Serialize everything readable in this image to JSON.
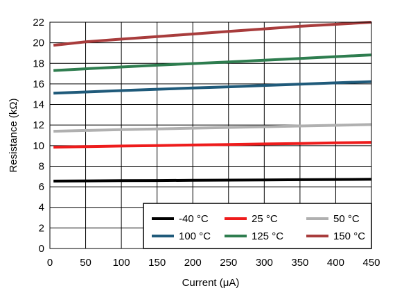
{
  "chart_data": {
    "type": "line",
    "xlabel": "Current (μA)",
    "ylabel": "Resistance (kΩ)",
    "xlim": [
      0,
      450
    ],
    "ylim": [
      0,
      22
    ],
    "xticks": [
      0,
      50,
      100,
      150,
      200,
      250,
      300,
      350,
      400,
      450
    ],
    "yticks": [
      0,
      2,
      4,
      6,
      8,
      10,
      12,
      14,
      16,
      18,
      20,
      22
    ],
    "xtick_labels": [
      "0",
      "50",
      "100",
      "150",
      "200",
      "250",
      "300",
      "350",
      "400",
      "450"
    ],
    "ytick_labels": [
      "0",
      "2",
      "4",
      "6",
      "8",
      "10",
      "12",
      "14",
      "16",
      "18",
      "20",
      "22"
    ],
    "grid": true,
    "legend_position": "bottom-right",
    "series": [
      {
        "name": "-40 °C",
        "color": "#000000",
        "x": [
          5,
          50,
          100,
          150,
          200,
          250,
          300,
          350,
          400,
          450
        ],
        "y": [
          6.55,
          6.57,
          6.59,
          6.61,
          6.63,
          6.65,
          6.67,
          6.69,
          6.71,
          6.73
        ]
      },
      {
        "name": "25 °C",
        "color": "#ee1c1c",
        "x": [
          5,
          50,
          100,
          150,
          200,
          250,
          300,
          350,
          400,
          450
        ],
        "y": [
          9.85,
          9.9,
          9.96,
          10.01,
          10.06,
          10.11,
          10.16,
          10.21,
          10.27,
          10.32
        ]
      },
      {
        "name": "50 °C",
        "color": "#b0b0b0",
        "x": [
          5,
          50,
          100,
          150,
          200,
          250,
          300,
          350,
          400,
          450
        ],
        "y": [
          11.4,
          11.48,
          11.56,
          11.63,
          11.7,
          11.77,
          11.84,
          11.91,
          11.98,
          12.05
        ]
      },
      {
        "name": "100 °C",
        "color": "#1f5a7a",
        "x": [
          5,
          50,
          100,
          150,
          200,
          250,
          300,
          350,
          400,
          450
        ],
        "y": [
          15.1,
          15.22,
          15.35,
          15.48,
          15.6,
          15.72,
          15.85,
          15.98,
          16.1,
          16.22
        ]
      },
      {
        "name": "125 °C",
        "color": "#2e7d4f",
        "x": [
          5,
          50,
          100,
          150,
          200,
          250,
          300,
          350,
          400,
          450
        ],
        "y": [
          17.3,
          17.47,
          17.65,
          17.82,
          17.98,
          18.14,
          18.3,
          18.47,
          18.65,
          18.82
        ]
      },
      {
        "name": "150 °C",
        "color": "#a83c3c",
        "x": [
          5,
          50,
          100,
          150,
          200,
          250,
          300,
          350,
          400,
          450
        ],
        "y": [
          19.75,
          20.1,
          20.35,
          20.6,
          20.85,
          21.1,
          21.35,
          21.6,
          21.8,
          22.0
        ]
      }
    ]
  }
}
